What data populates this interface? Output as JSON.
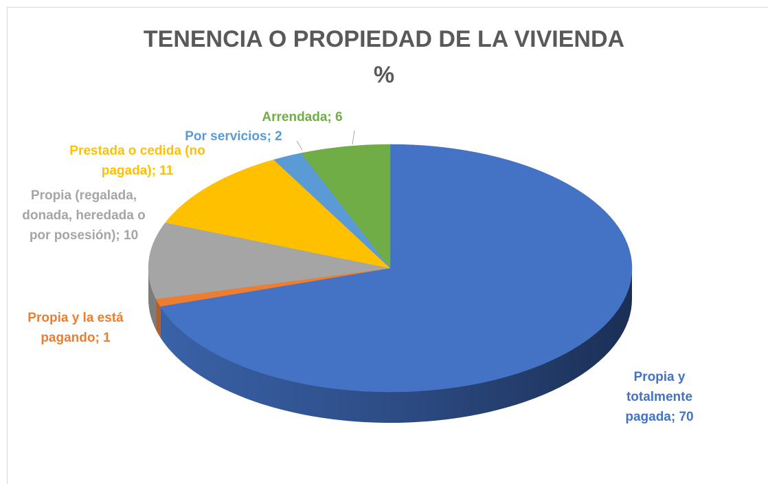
{
  "chart_data": {
    "type": "pie3d",
    "title": "TENENCIA O PROPIEDAD DE LA VIVIENDA",
    "subtitle": "%",
    "values": [
      70,
      1,
      10,
      11,
      2,
      6
    ],
    "value_labels": [
      "Propia y totalmente pagada; 70",
      "Propia y la está pagando; 1",
      "Propia (regalada, donada, heredada o por posesión); 10",
      "Prestada o cedida (no pagada); 11",
      "Por servicios; 2",
      "Arrendada; 6"
    ],
    "colors": [
      "#4472c4",
      "#ed7d31",
      "#a5a5a5",
      "#ffc000",
      "#5b9bd5",
      "#70ad47"
    ]
  }
}
